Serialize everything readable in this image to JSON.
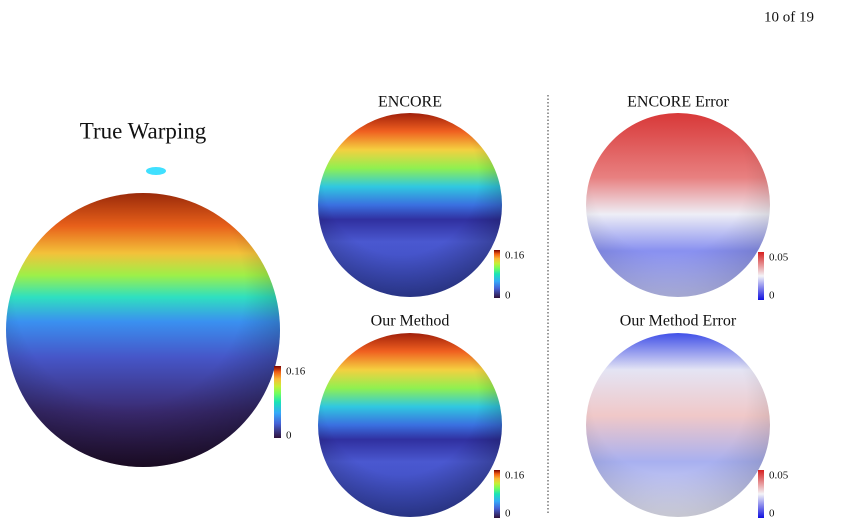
{
  "page_number": "10 of 19",
  "panels": [
    {
      "title": "True Warping",
      "colorbar": {
        "max": 0.16,
        "min": 0
      }
    },
    {
      "title": "ENCORE",
      "colorbar": {
        "max": 0.16,
        "min": 0
      }
    },
    {
      "title": "Our Method",
      "colorbar": {
        "max": 0.16,
        "min": 0
      }
    },
    {
      "title": "ENCORE Error",
      "colorbar": {
        "max": 0.05,
        "min": 0
      }
    },
    {
      "title": "Our Method Error",
      "colorbar": {
        "max": 0.05,
        "min": 0
      }
    }
  ]
}
